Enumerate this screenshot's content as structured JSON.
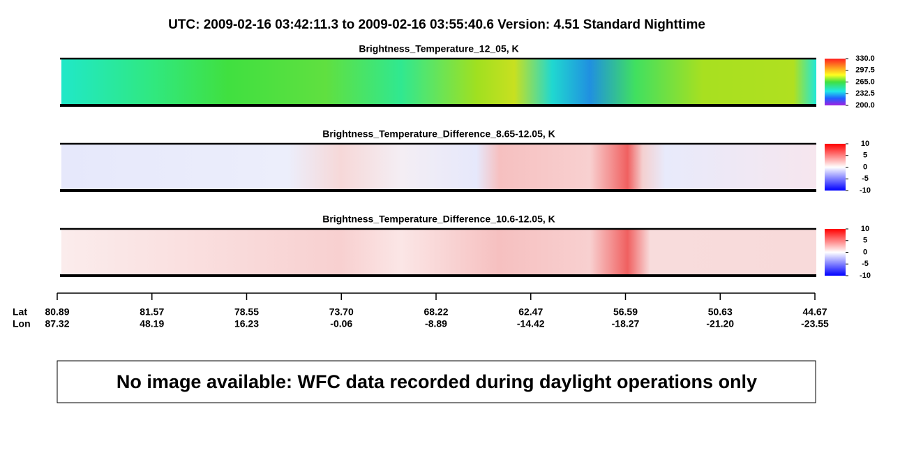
{
  "title": "UTC:  2009-02-16   03:42:11.3  to  2009-02-16   03:55:40.6    Version: 4.51  Standard Nighttime",
  "panels": [
    {
      "title": "Brightness_Temperature_12_05, K",
      "colorbar": [
        "330.0",
        "297.5",
        "265.0",
        "232.5",
        "200.0"
      ]
    },
    {
      "title": "Brightness_Temperature_Difference_8.65-12.05, K",
      "colorbar": [
        "10",
        "5",
        "0",
        "-5",
        "-10"
      ]
    },
    {
      "title": "Brightness_Temperature_Difference_10.6-12.05, K",
      "colorbar": [
        "10",
        "5",
        "0",
        "-5",
        "-10"
      ]
    }
  ],
  "axis": {
    "lat_label": "Lat",
    "lon_label": "Lon",
    "ticks": [
      {
        "lat": "80.89",
        "lon": "87.32"
      },
      {
        "lat": "81.57",
        "lon": "48.19"
      },
      {
        "lat": "78.55",
        "lon": "16.23"
      },
      {
        "lat": "73.70",
        "lon": "-0.06"
      },
      {
        "lat": "68.22",
        "lon": "-8.89"
      },
      {
        "lat": "62.47",
        "lon": "-14.42"
      },
      {
        "lat": "56.59",
        "lon": "-18.27"
      },
      {
        "lat": "50.63",
        "lon": "-21.20"
      },
      {
        "lat": "44.67",
        "lon": "-23.55"
      }
    ]
  },
  "message": "No image available: WFC data recorded during daylight operations only"
}
